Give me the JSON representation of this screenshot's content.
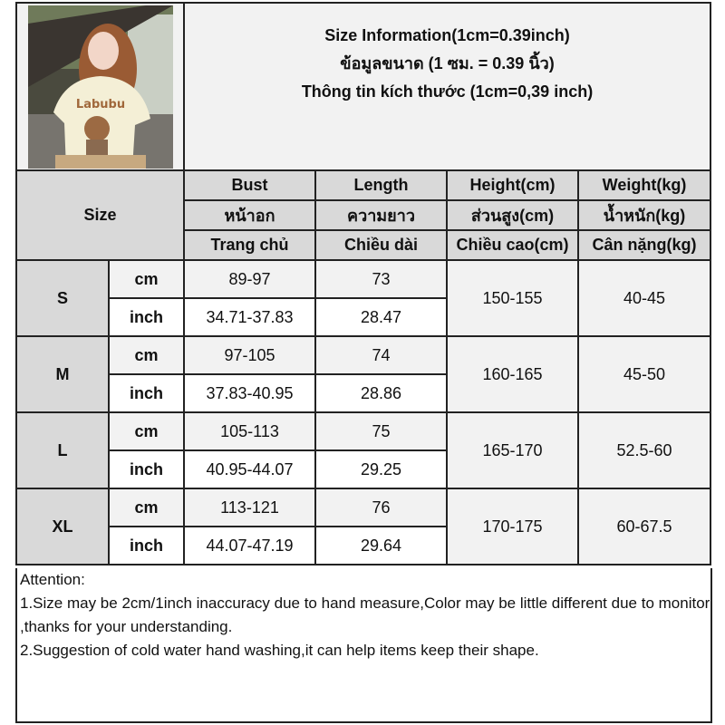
{
  "title": {
    "line1": "Size Information(1cm=0.39inch)",
    "line2": "ข้อมูลขนาด (1 ซม. = 0.39 นิ้ว)",
    "line3": "Thông tin kích thước (1cm=0,39 inch)"
  },
  "photo": {
    "description_icon": "product-photo"
  },
  "header": {
    "size_label": "Size",
    "columns": [
      {
        "en": "Bust",
        "th": "หน้าอก",
        "vi": "Trang chủ"
      },
      {
        "en": "Length",
        "th": "ความยาว",
        "vi": "Chiều dài"
      },
      {
        "en": "Height(cm)",
        "th": "ส่วนสูง(cm)",
        "vi": "Chiều cao(cm)"
      },
      {
        "en": "Weight(kg)",
        "th": "น้ำหนัก(kg)",
        "vi": "Cân nặng(kg)"
      }
    ]
  },
  "sizes": [
    {
      "size": "S",
      "cm_label": "cm",
      "inch_label": "inch",
      "bust_cm": "89-97",
      "length_cm": "73",
      "bust_inch": "34.71-37.83",
      "length_inch": "28.47",
      "height": "150-155",
      "weight": "40-45"
    },
    {
      "size": "M",
      "cm_label": "cm",
      "inch_label": "inch",
      "bust_cm": "97-105",
      "length_cm": "74",
      "bust_inch": "37.83-40.95",
      "length_inch": "28.86",
      "height": "160-165",
      "weight": "45-50"
    },
    {
      "size": "L",
      "cm_label": "cm",
      "inch_label": "inch",
      "bust_cm": "105-113",
      "length_cm": "75",
      "bust_inch": "40.95-44.07",
      "length_inch": "29.25",
      "height": "165-170",
      "weight": "52.5-60"
    },
    {
      "size": "XL",
      "cm_label": "cm",
      "inch_label": "inch",
      "bust_cm": "113-121",
      "length_cm": "76",
      "bust_inch": "44.07-47.19",
      "length_inch": "29.64",
      "height": "170-175",
      "weight": "60-67.5"
    }
  ],
  "attention": {
    "heading": "Attention:",
    "note1": "1.Size may be 2cm/1inch inaccuracy due to hand measure,Color may be little different due to monitor ,thanks for your understanding.",
    "note2": "2.Suggestion of cold water hand washing,it can help items keep their shape."
  }
}
